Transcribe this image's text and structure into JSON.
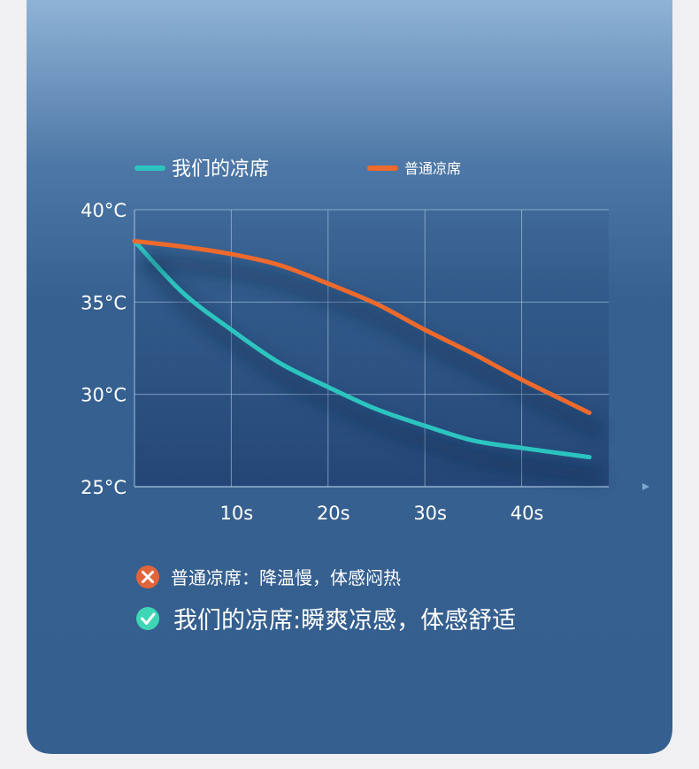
{
  "chart_data": {
    "type": "line",
    "x": [
      0,
      5,
      10,
      15,
      20,
      25,
      30,
      35,
      40,
      47
    ],
    "series": [
      {
        "name": "我们的凉席",
        "color": "#2cc4bf",
        "values": [
          38.3,
          35.5,
          33.5,
          31.7,
          30.4,
          29.2,
          28.3,
          27.5,
          27.1,
          26.6
        ]
      },
      {
        "name": "普通凉席",
        "color": "#ee6a2c",
        "values": [
          38.3,
          38.0,
          37.6,
          37.0,
          36.0,
          34.9,
          33.5,
          32.2,
          30.8,
          29.0
        ]
      }
    ],
    "xlim": [
      0,
      49
    ],
    "ylim": [
      25,
      40
    ],
    "xticks": [
      {
        "value": 10,
        "label": "10s"
      },
      {
        "value": 20,
        "label": "20s"
      },
      {
        "value": 30,
        "label": "30s"
      },
      {
        "value": 40,
        "label": "40s"
      }
    ],
    "yticks": [
      {
        "value": 25,
        "label": "25°C"
      },
      {
        "value": 30,
        "label": "30°C"
      },
      {
        "value": 35,
        "label": "35°C"
      },
      {
        "value": 40,
        "label": "40°C"
      }
    ],
    "grid": true,
    "annotations": [
      "普通凉席：降温慢，体感闷热",
      "我们的凉席:瞬爽凉感，体感舒适"
    ]
  }
}
